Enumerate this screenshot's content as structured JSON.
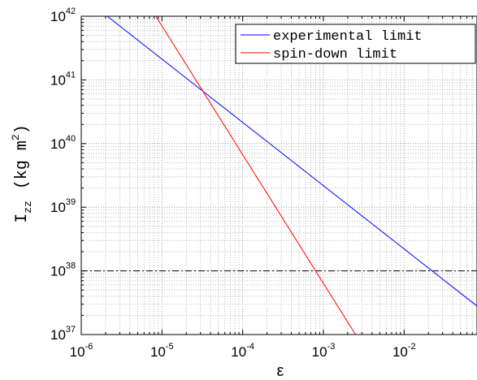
{
  "chart_data": {
    "type": "line",
    "x_scale": "log",
    "y_scale": "log",
    "xlim": [
      1e-06,
      0.08
    ],
    "ylim": [
      1e+37,
      1e+42
    ],
    "xlabel": "ε",
    "ylabel": {
      "base": "I",
      "subscript": "zz",
      "units": "(kg m",
      "units_exp": "2",
      "units_close": ")"
    },
    "x_ticks": [
      {
        "base": "10",
        "exp": "-6",
        "value": 1e-06
      },
      {
        "base": "10",
        "exp": "-5",
        "value": 1e-05
      },
      {
        "base": "10",
        "exp": "-4",
        "value": 0.0001
      },
      {
        "base": "10",
        "exp": "-3",
        "value": 0.001
      },
      {
        "base": "10",
        "exp": "-2",
        "value": 0.01
      }
    ],
    "y_ticks": [
      {
        "base": "10",
        "exp": "37",
        "value": 1e+37
      },
      {
        "base": "10",
        "exp": "38",
        "value": 1e+38
      },
      {
        "base": "10",
        "exp": "39",
        "value": 1e+39
      },
      {
        "base": "10",
        "exp": "40",
        "value": 1e+40
      },
      {
        "base": "10",
        "exp": "41",
        "value": 1e+41
      },
      {
        "base": "10",
        "exp": "42",
        "value": 1e+42
      }
    ],
    "grid": "on (dotted, major and minor)",
    "legend_position": "top-right",
    "series": [
      {
        "name": "experimental limit",
        "color": "#0000ff",
        "x": [
          2.1e-06,
          0.08
        ],
        "y": [
          1e+42,
          2.8e+37
        ]
      },
      {
        "name": "spin-down limit",
        "color": "#ff0000",
        "x": [
          8.4e-06,
          0.0025
        ],
        "y": [
          1e+42,
          1e+37
        ]
      }
    ],
    "reference_line": {
      "style": "dash-dot",
      "color": "#000000",
      "y": 1e+38
    }
  }
}
